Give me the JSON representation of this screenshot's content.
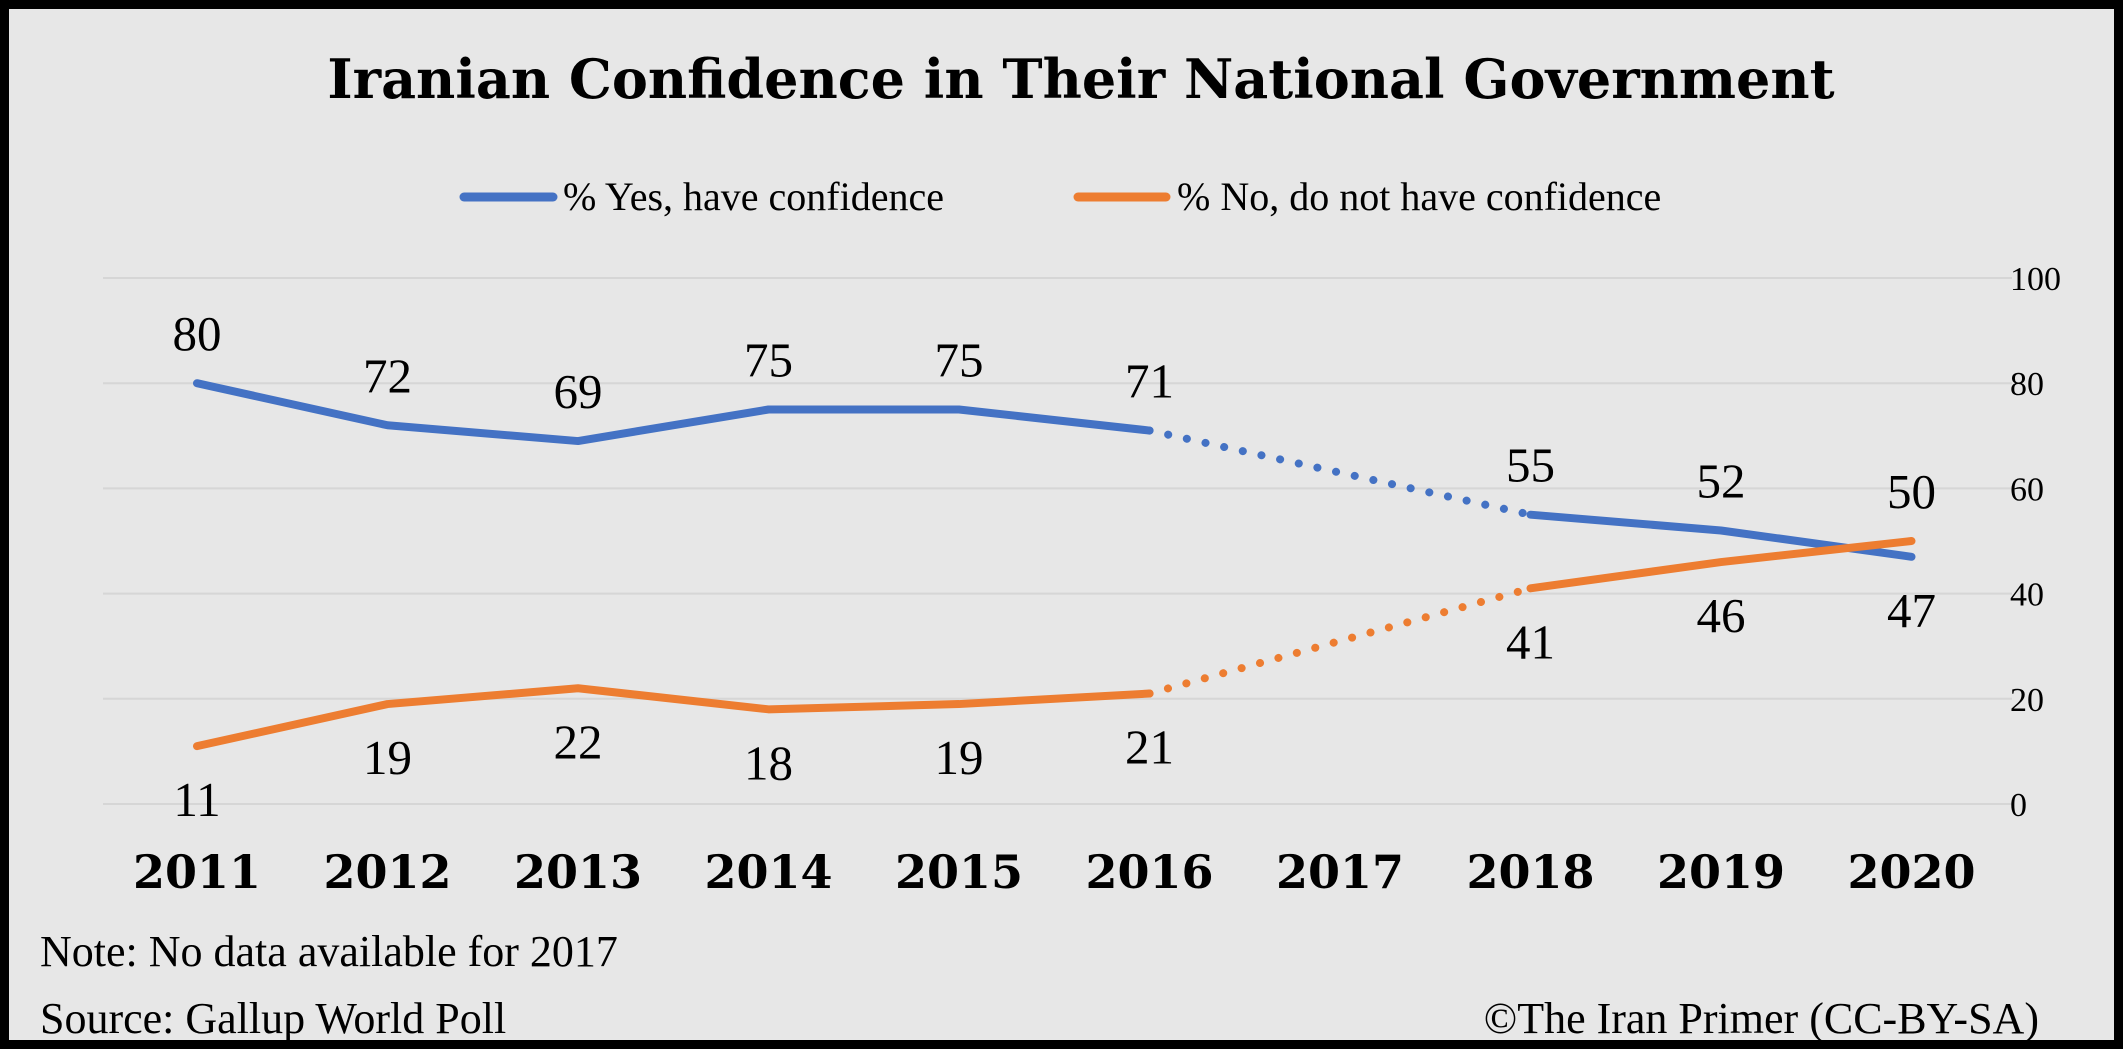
{
  "chart_data": {
    "type": "line",
    "title": "Iranian Confidence in Their National Government",
    "categories": [
      "2011",
      "2012",
      "2013",
      "2014",
      "2015",
      "2016",
      "2017",
      "2018",
      "2019",
      "2020"
    ],
    "series": [
      {
        "name": "% Yes, have confidence",
        "color": "#4472c4",
        "values": [
          80,
          72,
          69,
          75,
          75,
          71,
          null,
          55,
          52,
          47
        ],
        "labels": [
          "80",
          "72",
          "69",
          "75",
          "75",
          "71",
          "",
          "55",
          "52",
          "47"
        ]
      },
      {
        "name": "% No, do not have confidence",
        "color": "#ed7d31",
        "values": [
          11,
          19,
          22,
          18,
          19,
          21,
          null,
          41,
          46,
          50
        ],
        "labels": [
          "11",
          "19",
          "22",
          "18",
          "19",
          "21",
          "",
          "41",
          "46",
          "50"
        ]
      }
    ],
    "ylim": [
      0,
      100
    ],
    "yticks": [
      "0",
      "20",
      "40",
      "60",
      "80",
      "100"
    ],
    "y_axis_side": "right",
    "grid": true,
    "legend_position": "top",
    "missing_data_rendering": "dotted line across 2017"
  },
  "notes": {
    "note": "Note: No data available for 2017",
    "source": "Source: Gallup World Poll",
    "credit": "©The Iran Primer (CC-BY-SA)"
  },
  "colors": {
    "background": "#e7e7e7",
    "gridline": "#d6d6d6",
    "border": "#000000"
  }
}
